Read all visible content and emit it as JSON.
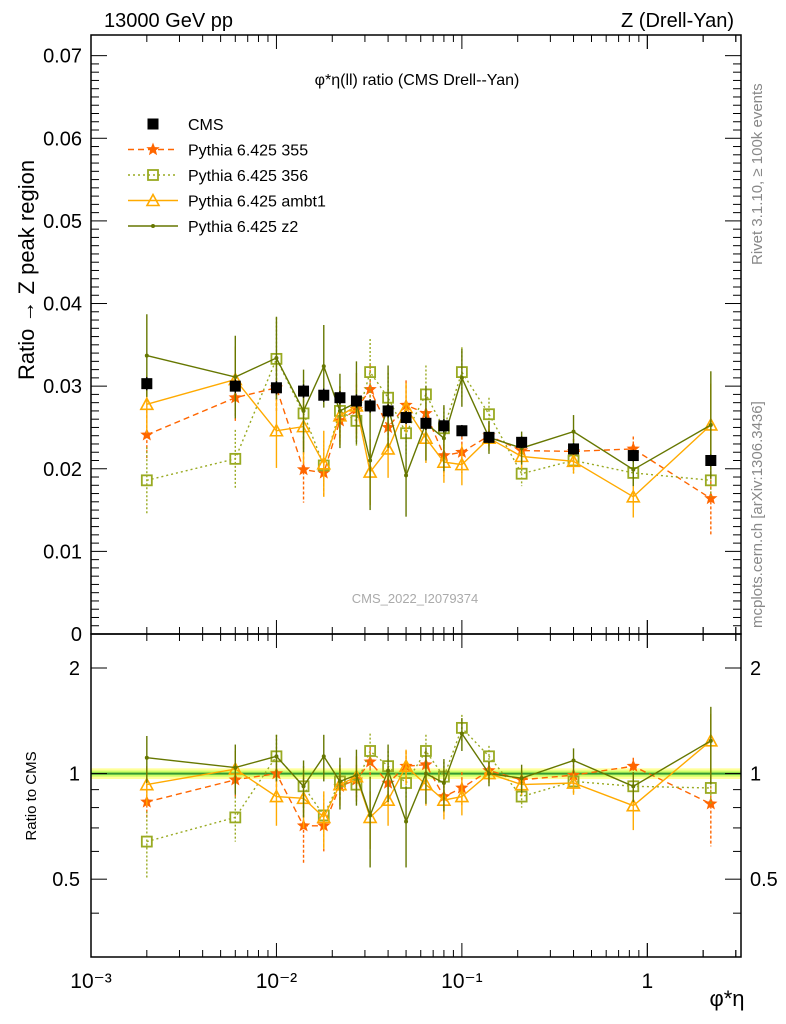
{
  "header": {
    "left": "13000 GeV pp",
    "right": "Z (Drell-Yan)"
  },
  "side": {
    "rivet": "Rivet 3.1.10, ≥ 100k events",
    "mcplots": "mcplots.cern.ch [arXiv:1306.3436]"
  },
  "watermark": "CMS_2022_I2079374",
  "plot_title": "φ*η(ll) ratio (CMS Drell--Yan)",
  "colors": {
    "cms": "#000000",
    "p355": "#ff6600",
    "p356": "#99aa22",
    "ambt1": "#ffaa00",
    "z2": "#667700",
    "band_inner": "#ccff66",
    "band_outer": "#ffff99",
    "refline": "#339933"
  },
  "chart_data": {
    "type": "scatter",
    "x_scale": "log",
    "xlim": [
      0.001,
      3.2
    ],
    "xlabel": "φ*η",
    "x_ticks": [
      "10⁻³",
      "10⁻²",
      "10⁻¹",
      "1"
    ],
    "x": [
      0.002,
      0.006,
      0.01,
      0.014,
      0.018,
      0.022,
      0.027,
      0.032,
      0.04,
      0.05,
      0.064,
      0.08,
      0.1,
      0.14,
      0.21,
      0.4,
      0.84,
      2.2
    ],
    "top": {
      "ylabel": "Ratio → Z peak region",
      "ylim": [
        0,
        0.0725
      ],
      "y_ticks": [
        "0",
        "0.01",
        "0.02",
        "0.03",
        "0.04",
        "0.05",
        "0.06",
        "0.07"
      ],
      "series": [
        {
          "name": "CMS",
          "key": "cms",
          "marker": "square-filled",
          "style": "none",
          "values": [
            0.0303,
            0.03,
            0.0298,
            0.0294,
            0.0289,
            0.0286,
            0.0282,
            0.0276,
            0.027,
            0.0262,
            0.0255,
            0.0252,
            0.0246,
            0.0238,
            0.0232,
            0.0224,
            0.0216,
            0.021
          ],
          "err": [
            0.0008,
            0.0008,
            0.0008,
            0.0008,
            0.0008,
            0.0008,
            0.0008,
            0.0008,
            0.0008,
            0.0008,
            0.0008,
            0.0008,
            0.0007,
            0.0007,
            0.0007,
            0.0007,
            0.0007,
            0.0007
          ]
        },
        {
          "name": "Pythia 6.425 355",
          "key": "p355",
          "marker": "star",
          "style": "dashed",
          "values": [
            0.0241,
            0.0286,
            0.0298,
            0.0199,
            0.0195,
            0.0258,
            0.0272,
            0.0296,
            0.025,
            0.0277,
            0.0267,
            0.0216,
            0.022,
            0.024,
            0.0222,
            0.0221,
            0.0224,
            0.0164
          ],
          "err": [
            0.003,
            0.003,
            0.003,
            0.004,
            0.003,
            0.0025,
            0.003,
            0.003,
            0.003,
            0.003,
            0.0025,
            0.0025,
            0.0025,
            0.0015,
            0.0015,
            0.0015,
            0.0015,
            0.0045
          ]
        },
        {
          "name": "Pythia 6.425 356",
          "key": "p356",
          "marker": "square-open",
          "style": "dotted",
          "values": [
            0.0186,
            0.0212,
            0.0333,
            0.0267,
            0.0204,
            0.027,
            0.0258,
            0.0317,
            0.0286,
            0.0243,
            0.029,
            0.0249,
            0.0317,
            0.0266,
            0.0194,
            0.021,
            0.0195,
            0.0186
          ],
          "err": [
            0.004,
            0.0035,
            0.005,
            0.004,
            0.003,
            0.003,
            0.003,
            0.004,
            0.003,
            0.0025,
            0.0035,
            0.0025,
            0.003,
            0.002,
            0.0015,
            0.0015,
            0.0015,
            0.002
          ]
        },
        {
          "name": "Pythia 6.425 ambt1",
          "key": "ambt1",
          "marker": "triangle-open",
          "style": "solid",
          "values": [
            0.0278,
            0.0308,
            0.0246,
            0.0251,
            0.0206,
            0.0264,
            0.0276,
            0.0196,
            0.0224,
            0.0274,
            0.0237,
            0.0208,
            0.0205,
            0.0237,
            0.0215,
            0.0209,
            0.0166,
            0.0253
          ],
          "err": [
            0.0035,
            0.004,
            0.0045,
            0.0045,
            0.004,
            0.0035,
            0.004,
            0.004,
            0.0035,
            0.003,
            0.003,
            0.0025,
            0.0025,
            0.0015,
            0.0015,
            0.0015,
            0.0025,
            0.005
          ]
        },
        {
          "name": "Pythia 6.425 z2",
          "key": "z2",
          "marker": "dot",
          "style": "solid",
          "values": [
            0.0337,
            0.0311,
            0.0334,
            0.027,
            0.0324,
            0.027,
            0.028,
            0.021,
            0.0275,
            0.0192,
            0.0255,
            0.0237,
            0.031,
            0.0238,
            0.0225,
            0.0245,
            0.0199,
            0.0253
          ],
          "err": [
            0.005,
            0.005,
            0.005,
            0.005,
            0.005,
            0.0045,
            0.005,
            0.006,
            0.005,
            0.005,
            0.0045,
            0.004,
            0.0035,
            0.002,
            0.002,
            0.002,
            0.002,
            0.0065
          ]
        }
      ]
    },
    "bottom": {
      "ylabel": "Ratio to CMS",
      "ylim": [
        0.3,
        2.5
      ],
      "y_ticks": [
        "0.5",
        "1",
        "2"
      ],
      "series": [
        {
          "name": "Pythia 6.425 355",
          "key": "p355",
          "values": [
            0.83,
            0.96,
            1.0,
            0.71,
            0.71,
            0.92,
            0.96,
            1.08,
            0.94,
            1.05,
            1.06,
            0.86,
            0.91,
            1.02,
            0.96,
            0.99,
            1.05,
            0.82
          ],
          "err": [
            0.1,
            0.1,
            0.1,
            0.16,
            0.11,
            0.09,
            0.1,
            0.11,
            0.11,
            0.11,
            0.1,
            0.1,
            0.1,
            0.06,
            0.06,
            0.07,
            0.06,
            0.2
          ]
        },
        {
          "name": "Pythia 6.425 356",
          "key": "p356",
          "values": [
            0.64,
            0.75,
            1.12,
            0.92,
            0.76,
            0.95,
            0.93,
            1.16,
            1.05,
            0.94,
            1.16,
            0.98,
            1.35,
            1.12,
            0.86,
            0.95,
            0.92,
            0.91
          ],
          "err": [
            0.14,
            0.11,
            0.17,
            0.13,
            0.11,
            0.11,
            0.11,
            0.14,
            0.11,
            0.1,
            0.13,
            0.1,
            0.12,
            0.08,
            0.06,
            0.07,
            0.07,
            0.09
          ]
        },
        {
          "name": "Pythia 6.425 ambt1",
          "key": "ambt1",
          "values": [
            0.93,
            1.03,
            0.86,
            0.85,
            0.75,
            0.93,
            0.98,
            0.75,
            0.84,
            1.05,
            0.93,
            0.84,
            0.86,
            1.0,
            0.93,
            0.94,
            0.81,
            1.24
          ],
          "err": [
            0.12,
            0.13,
            0.15,
            0.15,
            0.14,
            0.12,
            0.14,
            0.14,
            0.13,
            0.12,
            0.12,
            0.1,
            0.1,
            0.06,
            0.06,
            0.07,
            0.12,
            0.24
          ]
        },
        {
          "name": "Pythia 6.425 z2",
          "key": "z2",
          "values": [
            1.11,
            1.04,
            1.12,
            0.92,
            1.12,
            0.95,
            0.99,
            0.76,
            1.02,
            0.73,
            1.0,
            0.94,
            1.3,
            1.0,
            0.97,
            1.09,
            0.92,
            1.24
          ],
          "err": [
            0.17,
            0.17,
            0.17,
            0.17,
            0.17,
            0.16,
            0.18,
            0.22,
            0.19,
            0.19,
            0.18,
            0.16,
            0.14,
            0.08,
            0.09,
            0.09,
            0.09,
            0.31
          ]
        }
      ]
    },
    "legend_position": "top-left"
  }
}
